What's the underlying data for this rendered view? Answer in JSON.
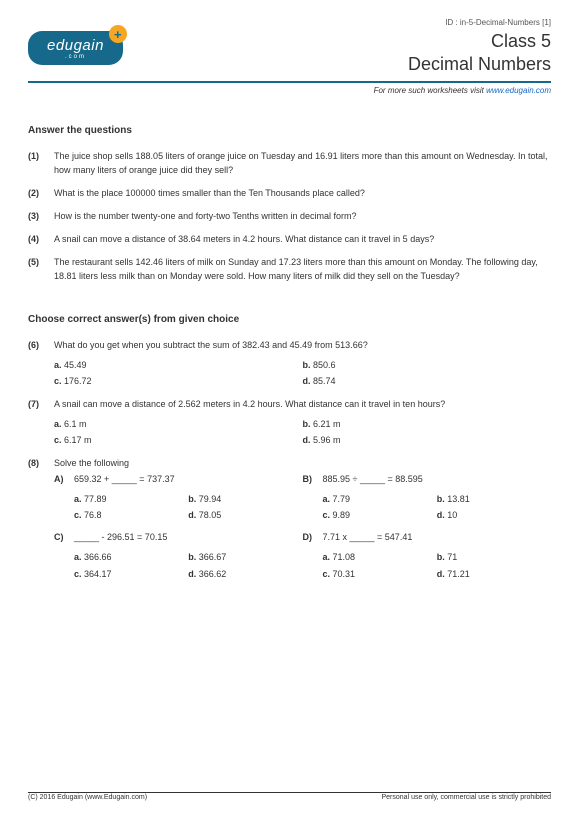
{
  "id_line": "ID : in-5-Decimal-Numbers [1]",
  "logo": {
    "main": "edugain",
    "sub": ".com",
    "plus": "+"
  },
  "titles": {
    "class": "Class 5",
    "subject": "Decimal Numbers"
  },
  "visit": {
    "prefix": "For more such worksheets visit ",
    "link": "www.edugain.com"
  },
  "section1": {
    "heading": "Answer the questions",
    "q1": {
      "num": "(1)",
      "text": "The juice shop sells 188.05 liters of orange juice on Tuesday and 16.91 liters more than this amount on Wednesday. In total, how many liters of orange juice did they sell?"
    },
    "q2": {
      "num": "(2)",
      "text": "What is the place 100000 times smaller than the Ten Thousands place called?"
    },
    "q3": {
      "num": "(3)",
      "text": "How is the number twenty-one and forty-two Tenths written in decimal form?"
    },
    "q4": {
      "num": "(4)",
      "text": "A snail can move a distance of 38.64 meters in 4.2 hours. What distance can it travel in 5 days?"
    },
    "q5": {
      "num": "(5)",
      "text": "The restaurant sells 142.46 liters of milk on Sunday and 17.23 liters more than this amount on Monday. The following day, 18.81 liters less milk than on Monday were sold. How many liters of milk did they sell on the Tuesday?"
    }
  },
  "section2": {
    "heading": "Choose correct answer(s) from given choice",
    "q6": {
      "num": "(6)",
      "text": "What do you get when you subtract the sum of 382.43 and 45.49 from 513.66?",
      "a": "45.49",
      "b": "850.6",
      "c": "176.72",
      "d": "85.74"
    },
    "q7": {
      "num": "(7)",
      "text": "A snail can move a distance of 2.562 meters in 4.2 hours. What distance can it travel in ten hours?",
      "a": "6.1 m",
      "b": "6.21 m",
      "c": "6.17 m",
      "d": "5.96 m"
    },
    "q8": {
      "num": "(8)",
      "text": "Solve the following",
      "A": {
        "eq": "659.32 + _____ = 737.37",
        "a": "77.89",
        "b": "79.94",
        "c": "76.8",
        "d": "78.05"
      },
      "B": {
        "eq": "885.95 ÷ _____ = 88.595",
        "a": "7.79",
        "b": "13.81",
        "c": "9.89",
        "d": "10"
      },
      "C": {
        "eq": "_____ - 296.51 = 70.15",
        "a": "366.66",
        "b": "366.67",
        "c": "364.17",
        "d": "366.62"
      },
      "D": {
        "eq": "7.71 x _____ = 547.41",
        "a": "71.08",
        "b": "71",
        "c": "70.31",
        "d": "71.21"
      }
    }
  },
  "footer": {
    "left": "(C) 2016 Edugain (www.Edugain.com)",
    "right": "Personal use only, commercial use is strictly prohibited"
  }
}
